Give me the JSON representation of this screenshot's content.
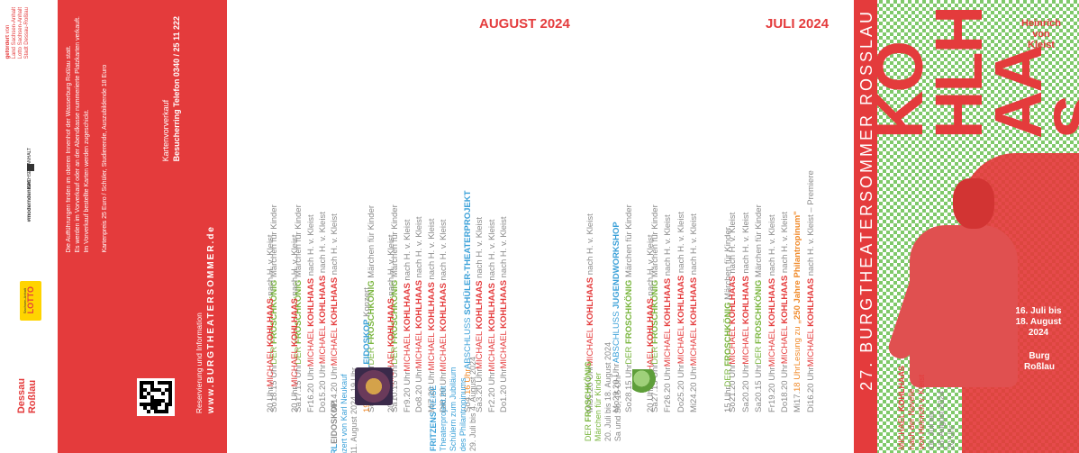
{
  "sponsors": {
    "funded_by_lines": [
      "gefördert",
      "von",
      "Land Sachsen-Anhalt",
      "Lotto Sachsen-Anhalt",
      "Stadt Dessau-Roßlau"
    ],
    "logo_1": "SACHSEN-ANHALT",
    "logo_2": "#moderndenken",
    "lotto": "LOTTO",
    "lotto_sub": "Sachsen-Anhalt",
    "dessau_line1": "Dessau",
    "dessau_line2": "Roßlau"
  },
  "info": {
    "heading": "Kartenvorverkauf",
    "service_label": "Besucherring Telefon 0340 / 25 11 222",
    "reservation": "Reservierung und Information",
    "website": "www.BURGTHEATERSOMMER.de",
    "notes": [
      "Die Aufführungen finden im oberen Innenhof der Wasserburg Roßlau statt.",
      "Es werden im Vorverkauf oder an der Abendkasse nummerierte Platzkarten verkauft.",
      "Im Vorverkauf bestellte Karten werden zugeschickt."
    ],
    "prices": "Kartenpreis 25 Euro  /  Schüler, Studierende, Auszubildende 18 Euro"
  },
  "july": {
    "heading": "JULI 2024",
    "rows": [
      {
        "dow": "Di",
        "day": "16.",
        "time": "20 Uhr",
        "t1": "MICHAEL ",
        "t2": "KOHLHAAS",
        "t3": " nach H. v. Kleist – Premiere",
        "c": "red",
        "tc": "sub"
      },
      {
        "dow": "Mi",
        "day": "17.",
        "time": "18 Uhr",
        "t1": "Lesung zu ",
        "t2": "„250 Jahre Philantropinum\"",
        "t3": "",
        "c": "orange",
        "tc": "orange"
      },
      {
        "dow": "Do",
        "day": "18.",
        "time": "20 Uhr",
        "t1": "MICHAEL ",
        "t2": "KOHLHAAS",
        "t3": " nach H. v. Kleist",
        "c": "red",
        "tc": "sub"
      },
      {
        "dow": "Fr",
        "day": "19.",
        "time": "20 Uhr",
        "t1": "MICHAEL ",
        "t2": "KOHLHAAS",
        "t3": " nach H. v. Kleist",
        "c": "red",
        "tc": "sub"
      },
      {
        "dow": "Sa",
        "day": "20.",
        "time": "15 Uhr",
        "t1": "DER ",
        "t2": "FROSCHKÖNIG",
        "t3": " Märchen für Kinder",
        "c": "green",
        "tc": "sub"
      },
      {
        "dow": "Sa",
        "day": "20.",
        "time": "20 Uhr",
        "t1": "MICHAEL ",
        "t2": "KOHLHAAS",
        "t3": " nach H. v. Kleist",
        "c": "red",
        "tc": "sub"
      },
      {
        "dow": "So",
        "day": "21.",
        "time": "20 Uhr",
        "t1": "MICHAEL ",
        "t2": "KOHLHAAS",
        "t3": " nach H. v. Kleist",
        "c": "red",
        "tc": "sub"
      },
      {
        "dow": "",
        "day": "",
        "time": "15 Uhr",
        "t1": "DER ",
        "t2": "FROSCHKÖNIG",
        "t3": " Märchen für Kinder",
        "c": "green",
        "tc": "sub"
      },
      {
        "dow": "",
        "day": "",
        "time": "",
        "t1": "",
        "t2": "",
        "t3": "",
        "c": "sub",
        "tc": "sub"
      },
      {
        "dow": "Mi",
        "day": "24.",
        "time": "20 Uhr",
        "t1": "MICHAEL ",
        "t2": "KOHLHAAS",
        "t3": " nach H. v. Kleist",
        "c": "red",
        "tc": "sub"
      },
      {
        "dow": "Do",
        "day": "25.",
        "time": "20 Uhr",
        "t1": "MICHAEL ",
        "t2": "KOHLHAAS",
        "t3": " nach H. v. Kleist",
        "c": "red",
        "tc": "sub"
      },
      {
        "dow": "Fr",
        "day": "26.",
        "time": "20 Uhr",
        "t1": "MICHAEL ",
        "t2": "KOHLHAAS",
        "t3": " nach H. v. Kleist",
        "c": "red",
        "tc": "sub"
      },
      {
        "dow": "Sa",
        "day": "27.",
        "time": "15 Uhr",
        "t1": "DER ",
        "t2": "FROSCHKÖNIG",
        "t3": " Märchen für Kinder",
        "c": "green",
        "tc": "sub"
      },
      {
        "dow": "",
        "day": "",
        "time": "20 Uhr",
        "t1": "MICHAEL ",
        "t2": "KOHLHAAS",
        "t3": " nach H. v. Kleist",
        "c": "red",
        "tc": "sub"
      },
      {
        "dow": "So",
        "day": "28.",
        "time": "15 Uhr",
        "t1": "DER ",
        "t2": "FROSCHKÖNIG",
        "t3": " Märchen für Kinder",
        "c": "green",
        "tc": "sub"
      },
      {
        "dow": "Mo",
        "day": "29.",
        "time": "20 Uhr",
        "t1": "ABSCHLUSS ",
        "t2": "JUGENDWORKSHOP",
        "t3": "",
        "c": "blue",
        "tc": "sub"
      },
      {
        "dow": "",
        "day": "",
        "time": "",
        "t1": "",
        "t2": "",
        "t3": "",
        "c": "sub",
        "tc": "sub"
      },
      {
        "dow": "Mi",
        "day": "31.",
        "time": "20 Uhr",
        "t1": "MICHAEL ",
        "t2": "KOHLHAAS",
        "t3": " nach H. v. Kleist",
        "c": "red",
        "tc": "sub"
      }
    ]
  },
  "august": {
    "heading": "AUGUST 2024",
    "rows": [
      {
        "dow": "Do",
        "day": "1.",
        "time": "20 Uhr",
        "t1": "MICHAEL ",
        "t2": "KOHLHAAS",
        "t3": " nach H. v. Kleist",
        "c": "red",
        "tc": "sub"
      },
      {
        "dow": "Fr",
        "day": "2.",
        "time": "20 Uhr",
        "t1": "MICHAEL ",
        "t2": "KOHLHAAS",
        "t3": " nach H. v. Kleist",
        "c": "red",
        "tc": "sub"
      },
      {
        "dow": "Sa",
        "day": "3.",
        "time": "20 Uhr",
        "t1": "MICHAEL ",
        "t2": "KOHLHAAS",
        "t3": " nach H. v. Kleist",
        "c": "red",
        "tc": "sub"
      },
      {
        "dow": "So",
        "day": "4.",
        "time": "16 Uhr",
        "t1": "ABSCHLUSS ",
        "t2": "SCHÜLER-THEATERPROJEKT",
        "t3": "",
        "c": "blue",
        "tc": "orange"
      },
      {
        "dow": "",
        "day": "",
        "time": "",
        "t1": "",
        "t2": "",
        "t3": "",
        "c": "sub",
        "tc": "sub"
      },
      {
        "dow": "Di",
        "day": "6.",
        "time": "20 Uhr",
        "t1": "MICHAEL ",
        "t2": "KOHLHAAS",
        "t3": " nach H. v. Kleist",
        "c": "red",
        "tc": "sub"
      },
      {
        "dow": "Mi",
        "day": "7.",
        "time": "20 Uhr",
        "t1": "MICHAEL ",
        "t2": "KOHLHAAS",
        "t3": " nach H. v. Kleist",
        "c": "red",
        "tc": "sub"
      },
      {
        "dow": "Do",
        "day": "8.",
        "time": "20 Uhr",
        "t1": "MICHAEL ",
        "t2": "KOHLHAAS",
        "t3": " nach H. v. Kleist",
        "c": "red",
        "tc": "sub"
      },
      {
        "dow": "Fr",
        "day": "9.",
        "time": "20 Uhr",
        "t1": "MICHAEL ",
        "t2": "KOHLHAAS",
        "t3": " nach H. v. Kleist",
        "c": "red",
        "tc": "sub"
      },
      {
        "dow": "Sa",
        "day": "10.",
        "time": "15 Uhr",
        "t1": "DER ",
        "t2": "FROSCHKÖNIG",
        "t3": " Märchen für Kinder",
        "c": "green",
        "tc": "sub"
      },
      {
        "dow": "",
        "day": "",
        "time": "20 Uhr",
        "t1": "MICHAEL ",
        "t2": "KOHLHAAS",
        "t3": " nach H. v. Kleist",
        "c": "red",
        "tc": "sub"
      },
      {
        "dow": "So",
        "day": "11.",
        "time": "15 Uhr",
        "t1": "DER ",
        "t2": "FROSCHKÖNIG",
        "t3": " Märchen für Kinder",
        "c": "green",
        "tc": "sub"
      },
      {
        "dow": "",
        "day": "",
        "time": "19 Uhr",
        "t1": "KARL",
        "t2": "EIDOSKOP",
        "t3": " Konzert",
        "c": "blue",
        "tc": "orange"
      },
      {
        "dow": "",
        "day": "",
        "time": "",
        "t1": "",
        "t2": "",
        "t3": "",
        "c": "sub",
        "tc": "sub"
      },
      {
        "dow": "Mi",
        "day": "14.",
        "time": "20 Uhr",
        "t1": "MICHAEL ",
        "t2": "KOHLHAAS",
        "t3": " nach H. v. Kleist",
        "c": "red",
        "tc": "sub"
      },
      {
        "dow": "Do",
        "day": "15.",
        "time": "20 Uhr",
        "t1": "MICHAEL ",
        "t2": "KOHLHAAS",
        "t3": " nach H. v. Kleist",
        "c": "red",
        "tc": "sub"
      },
      {
        "dow": "Fr",
        "day": "16.",
        "time": "20 Uhr",
        "t1": "MICHAEL ",
        "t2": "KOHLHAAS",
        "t3": " nach H. v. Kleist",
        "c": "red",
        "tc": "sub"
      },
      {
        "dow": "Sa",
        "day": "17.",
        "time": "15 Uhr",
        "t1": "DER ",
        "t2": "FROSCHKÖNIG",
        "t3": " Märchen für Kinder",
        "c": "green",
        "tc": "sub"
      },
      {
        "dow": "",
        "day": "",
        "time": "20 Uhr",
        "t1": "MICHAEL ",
        "t2": "KOHLHAAS",
        "t3": " nach H. v. Kleist",
        "c": "red",
        "tc": "sub"
      },
      {
        "dow": "So",
        "day": "18.",
        "time": "15 Uhr",
        "t1": "DER ",
        "t2": "FROSCHKÖNIG",
        "t3": " Märchen für Kinder",
        "c": "green",
        "tc": "sub"
      },
      {
        "dow": "",
        "day": "",
        "time": "20 Uhr",
        "t1": "MICHAEL ",
        "t2": "KOHLHAAS",
        "t3": " nach H. v. Kleist",
        "c": "red",
        "tc": "sub"
      }
    ]
  },
  "highlights": {
    "karl_title_a": "KARL",
    "karl_title_b": "EIDOSKOP",
    "karl_sub": "Konzert von Karl Neukauf",
    "karl_date": "So 11. August 2024, 19 Uhr",
    "fritzens_title_a": "FRITZENS",
    "fritzens_title_b": " REISE",
    "fritzens_l1": "Theaterprojekt mit",
    "fritzens_l2": "Schülern zum Jubiläum",
    "fritzens_l3": "des Philantropinums",
    "fritzens_date": "29. Juli bis 4. August 2024",
    "frosch_title_a": "DER ",
    "frosch_title_b": "FROSCHKÖNIG",
    "frosch_sub": "Märchen für Kinder",
    "frosch_d1": "20. Juli bis 18. August 2024",
    "frosch_d2": "Sa und So, 15 Uhr"
  },
  "poster": {
    "festival": "27. BURGTHEATERSOMMER ROSSLAU",
    "title": "KOHLHAAS",
    "title_lines": [
      "KO",
      "HLH",
      "AA",
      "S"
    ],
    "author_l1": "Heinrich",
    "author_l2": "von",
    "author_l3": "Kleist",
    "dates_l1": "16. Juli bis",
    "dates_l2": "18. August 2024",
    "venue_l1": "Burg",
    "venue_l2": "Roßlau",
    "event_a": "MICHAEL ",
    "event_b": "KOHLHAAS",
    "event_l2": "nach der Novelle",
    "event_l3": "von Heinrich v. Kleist",
    "event_d1": "16. Juli bis",
    "event_d2": "18. August 2024",
    "event_d3": "20 Uhr"
  },
  "colors": {
    "accent_red": "#e43b3c",
    "green": "#78b43c",
    "blue": "#3aa0d8",
    "orange": "#f08a2a"
  }
}
